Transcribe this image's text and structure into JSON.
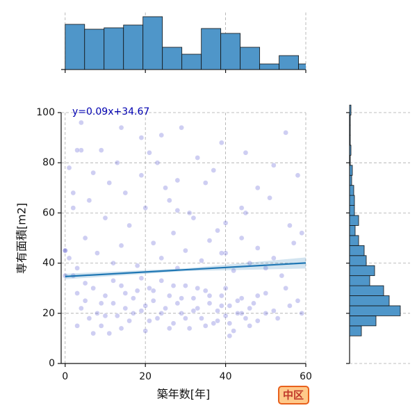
{
  "chart_data": [
    {
      "type": "scatter",
      "xlabel": "築年数[年]",
      "ylabel": "専有面積[m2]",
      "xlim": [
        -1,
        60
      ],
      "ylim": [
        0,
        100
      ],
      "xticks": [
        0,
        20,
        40,
        60
      ],
      "yticks": [
        0,
        20,
        40,
        60,
        80,
        100
      ],
      "grid": true,
      "color": "#3a3acc",
      "regression": {
        "slope": 0.09,
        "intercept": 34.67,
        "label": "y=0.09x+34.67",
        "color": "#1f77b4"
      },
      "x": [
        3,
        4,
        5,
        6,
        7,
        8,
        9,
        10,
        11,
        12,
        13,
        14,
        15,
        16,
        17,
        18,
        19,
        20,
        21,
        22,
        23,
        24,
        25,
        26,
        27,
        28,
        29,
        30,
        31,
        32,
        33,
        34,
        35,
        36,
        37,
        38,
        39,
        40,
        41,
        42,
        43,
        44,
        45,
        46,
        47,
        48,
        50,
        52,
        55,
        58,
        2,
        3,
        5,
        7,
        9,
        10,
        12,
        14,
        15,
        17,
        19,
        20,
        21,
        22,
        24,
        26,
        27,
        29,
        30,
        32,
        33,
        35,
        36,
        38,
        39,
        40,
        41,
        43,
        44,
        46,
        48,
        50,
        53,
        56,
        59,
        0,
        1,
        3,
        5,
        8,
        10,
        12,
        14,
        16,
        18,
        20,
        22,
        24,
        25,
        27,
        28,
        30,
        32,
        34,
        36,
        38,
        40,
        42,
        44,
        46,
        48,
        50,
        52,
        54,
        57,
        59,
        2,
        6,
        11,
        15,
        19,
        23,
        26,
        31,
        35,
        40,
        45,
        51,
        56,
        4,
        14,
        4,
        9,
        19,
        24,
        29,
        33,
        39,
        45,
        52,
        55,
        1,
        7,
        13,
        21,
        28,
        37,
        48,
        58,
        2,
        44,
        0,
        0,
        28,
        39,
        41,
        3
      ],
      "y": [
        28,
        22,
        25,
        18,
        30,
        20,
        15,
        27,
        12,
        24,
        19,
        31,
        22,
        17,
        26,
        29,
        21,
        13,
        30,
        25,
        18,
        33,
        22,
        27,
        16,
        24,
        20,
        31,
        14,
        26,
        22,
        18,
        29,
        24,
        16,
        21,
        27,
        19,
        23,
        13,
        20,
        26,
        18,
        22,
        24,
        17,
        28,
        21,
        30,
        25,
        35,
        15,
        32,
        12,
        24,
        19,
        33,
        14,
        28,
        20,
        34,
        23,
        17,
        29,
        20,
        14,
        31,
        26,
        18,
        21,
        30,
        15,
        27,
        17,
        23,
        30,
        16,
        25,
        20,
        15,
        27,
        20,
        18,
        23,
        20,
        45,
        42,
        38,
        50,
        44,
        58,
        40,
        47,
        55,
        39,
        62,
        48,
        42,
        70,
        52,
        38,
        45,
        58,
        41,
        49,
        53,
        44,
        37,
        50,
        40,
        46,
        38,
        42,
        35,
        48,
        52,
        62,
        65,
        72,
        68,
        75,
        80,
        65,
        60,
        72,
        56,
        60,
        66,
        55,
        96,
        94,
        85,
        85,
        90,
        91,
        94,
        82,
        88,
        84,
        79,
        92,
        78,
        76,
        80,
        84,
        73,
        77,
        70,
        75,
        68,
        62,
        35,
        45,
        61,
        44,
        11,
        85
      ]
    },
    {
      "type": "histogram",
      "orientation": "vertical",
      "color": "#4f96c9",
      "bins": [
        0,
        4.85,
        9.7,
        14.55,
        19.4,
        24.25,
        29.1,
        33.95,
        38.8,
        43.65,
        48.5,
        53.35,
        58.2,
        63.05
      ],
      "counts": [
        65,
        58,
        60,
        64,
        76,
        32,
        22,
        59,
        52,
        32,
        8,
        20,
        8
      ],
      "ylim": [
        0,
        76
      ]
    },
    {
      "type": "histogram",
      "orientation": "horizontal",
      "color": "#4f96c9",
      "bins": [
        11,
        15,
        19,
        23,
        27,
        31,
        35,
        39,
        43,
        47,
        51,
        55,
        59,
        63,
        67,
        71,
        75,
        79,
        83,
        87,
        91,
        95,
        99,
        103
      ],
      "counts": [
        17,
        38,
        73,
        57,
        49,
        29,
        36,
        24,
        21,
        13,
        8,
        13,
        7,
        7,
        6,
        3,
        4,
        1,
        2,
        1,
        1,
        1,
        2
      ],
      "xlim": [
        0,
        76
      ]
    }
  ],
  "badge": "中区"
}
